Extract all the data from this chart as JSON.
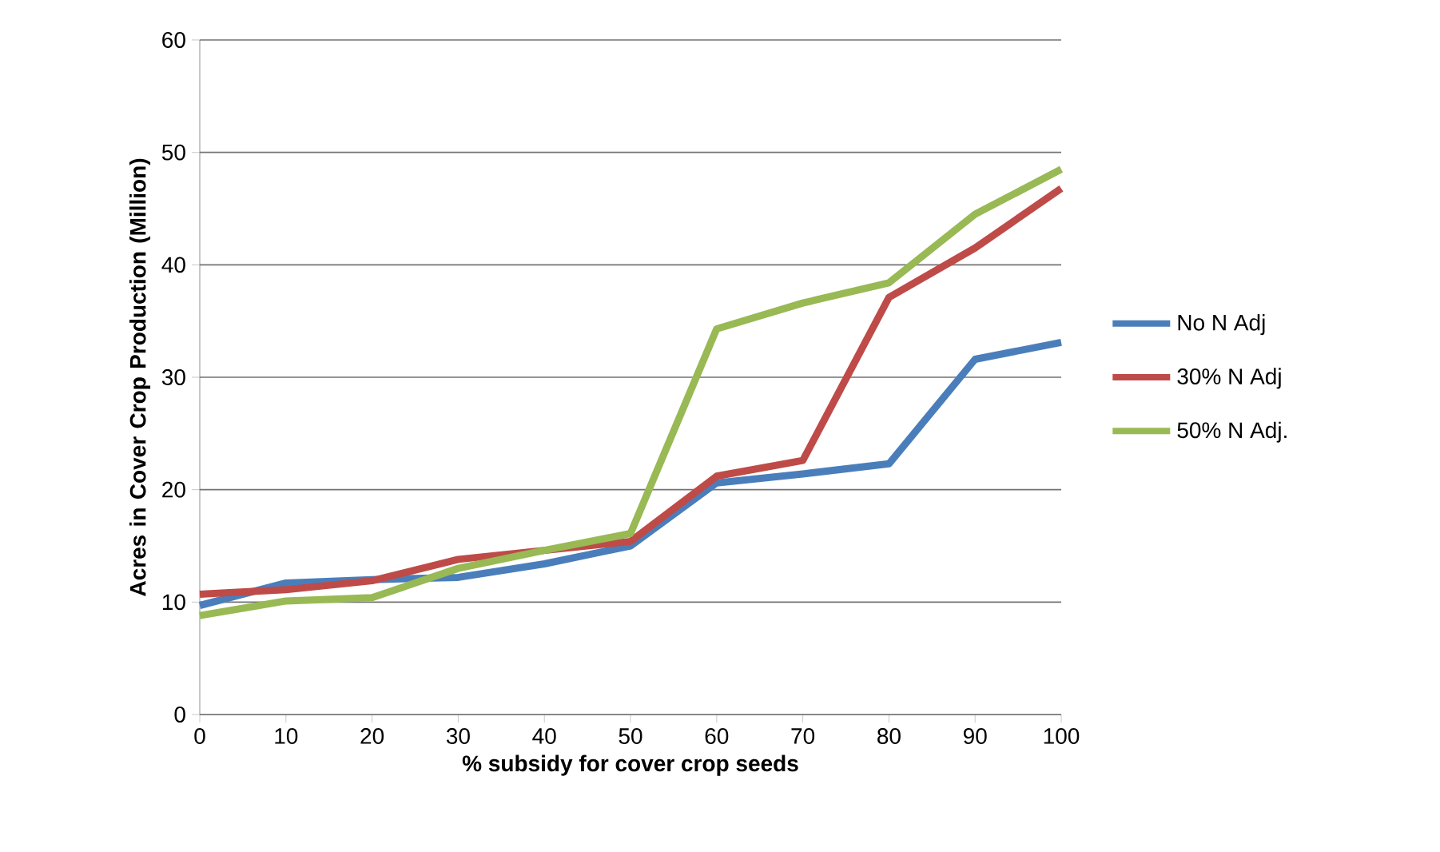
{
  "chart_data": {
    "type": "line",
    "xlabel": "% subsidy for cover crop seeds",
    "ylabel": "Acres in Cover Crop Production (Million)",
    "categories": [
      "0",
      "10",
      "20",
      "30",
      "40",
      "50",
      "60",
      "70",
      "80",
      "90",
      "100"
    ],
    "series": [
      {
        "name": "No N Adj",
        "color": "#4a7ebb",
        "values": [
          9.7,
          11.7,
          12.0,
          12.2,
          13.4,
          15.0,
          20.6,
          21.4,
          22.3,
          31.6,
          33.1
        ]
      },
      {
        "name": "30% N Adj",
        "color": "#be4b48",
        "values": [
          10.7,
          11.1,
          11.9,
          13.8,
          14.6,
          15.4,
          21.2,
          22.6,
          37.1,
          41.5,
          46.8
        ]
      },
      {
        "name": "50% N Adj.",
        "color": "#98b954",
        "values": [
          8.8,
          10.1,
          10.4,
          13.0,
          14.6,
          16.1,
          34.3,
          36.6,
          38.4,
          44.5,
          48.5
        ]
      }
    ],
    "ylim": [
      0,
      60
    ],
    "yticks": [
      0,
      10,
      20,
      30,
      40,
      50,
      60
    ],
    "grid": "y",
    "legend": "right",
    "marker": "none",
    "line_style": "solid"
  }
}
